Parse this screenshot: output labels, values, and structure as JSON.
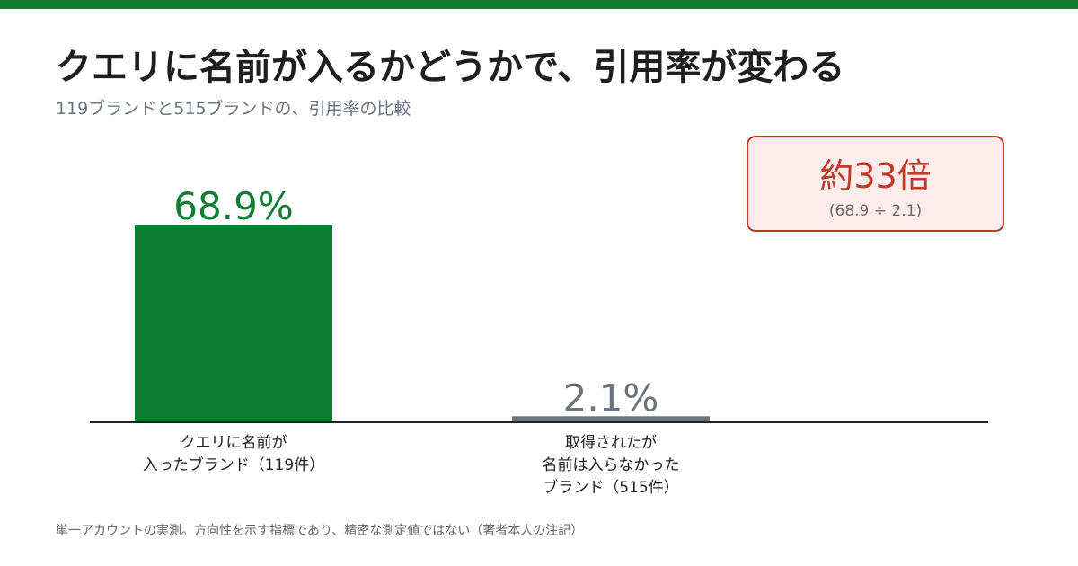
{
  "title": "クエリに名前が入るかどうかで、引用率が変わる",
  "subtitle": "119ブランドと515ブランドの、引用率の比較",
  "colors": {
    "accent": "#0d7d34",
    "muted": "#6b737c",
    "callout_border": "#c0392b",
    "callout_text": "#c0392b",
    "callout_bg": "#fdecea"
  },
  "callout": {
    "main": "約33倍",
    "sub": "(68.9 ÷ 2.1)"
  },
  "chart_data": {
    "type": "bar",
    "categories": [
      [
        "クエリに名前が",
        "入ったブランド（119件）"
      ],
      [
        "取得されたが",
        "名前は入らなかった",
        "ブランド（515件）"
      ]
    ],
    "values": [
      68.9,
      2.1
    ],
    "value_labels": [
      "68.9%",
      "2.1%"
    ],
    "ylim": [
      0,
      70
    ],
    "grid": false
  },
  "footnote": "単一アカウントの実測。方向性を示す指標であり、精密な測定値ではない（著者本人の注記）"
}
